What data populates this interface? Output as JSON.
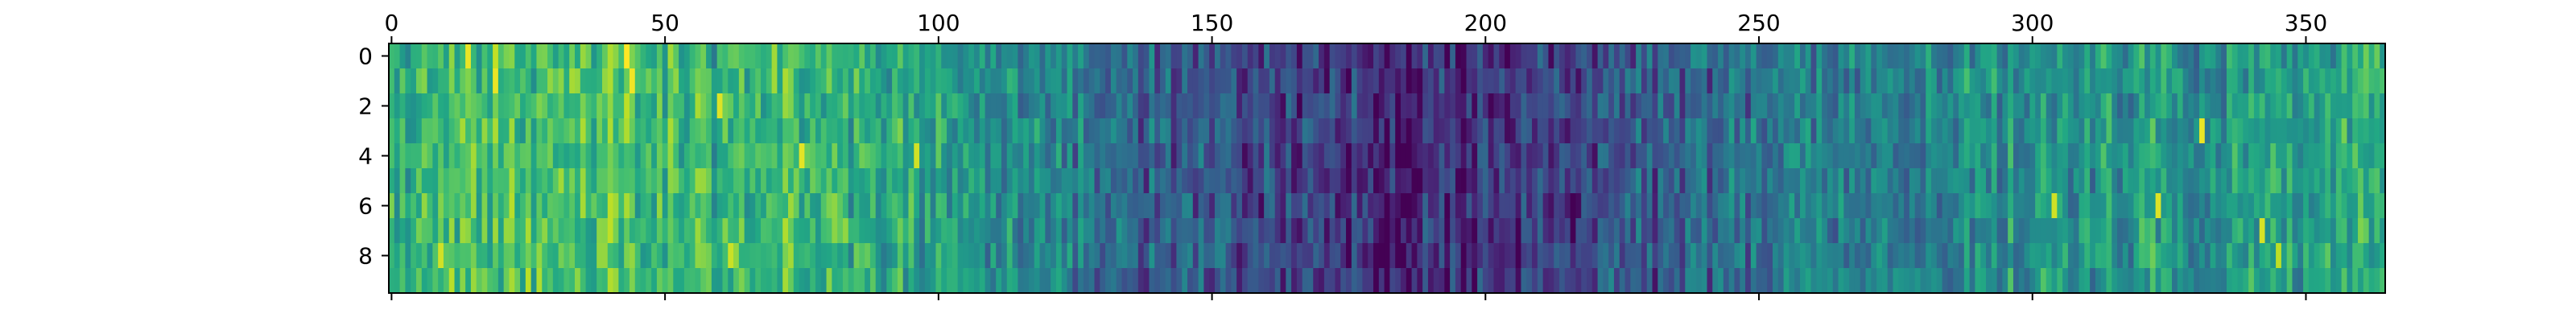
{
  "chart_data": {
    "type": "heatmap",
    "title": "",
    "xlabel": "",
    "ylabel": "",
    "colormap": "viridis",
    "rows": 10,
    "cols": 365,
    "xlim": [
      -0.5,
      364.5
    ],
    "ylim": [
      9.5,
      -0.5
    ],
    "x_axis_position": "top",
    "x_ticks": [
      0,
      50,
      100,
      150,
      200,
      250,
      300,
      350
    ],
    "x_tick_labels": [
      "0",
      "50",
      "100",
      "150",
      "200",
      "250",
      "300",
      "350"
    ],
    "y_ticks": [
      0,
      2,
      4,
      6,
      8
    ],
    "y_tick_labels": [
      "0",
      "2",
      "4",
      "6",
      "8"
    ],
    "value_range": [
      0,
      1
    ],
    "column_profile": [
      {
        "x": 0,
        "v": 0.58
      },
      {
        "x": 10,
        "v": 0.68
      },
      {
        "x": 20,
        "v": 0.72
      },
      {
        "x": 30,
        "v": 0.66
      },
      {
        "x": 40,
        "v": 0.74
      },
      {
        "x": 50,
        "v": 0.66
      },
      {
        "x": 60,
        "v": 0.62
      },
      {
        "x": 70,
        "v": 0.66
      },
      {
        "x": 80,
        "v": 0.62
      },
      {
        "x": 90,
        "v": 0.6
      },
      {
        "x": 100,
        "v": 0.56
      },
      {
        "x": 110,
        "v": 0.5
      },
      {
        "x": 120,
        "v": 0.44
      },
      {
        "x": 130,
        "v": 0.38
      },
      {
        "x": 140,
        "v": 0.3
      },
      {
        "x": 150,
        "v": 0.27
      },
      {
        "x": 160,
        "v": 0.2
      },
      {
        "x": 170,
        "v": 0.18
      },
      {
        "x": 180,
        "v": 0.17
      },
      {
        "x": 190,
        "v": 0.14
      },
      {
        "x": 200,
        "v": 0.13
      },
      {
        "x": 210,
        "v": 0.18
      },
      {
        "x": 220,
        "v": 0.24
      },
      {
        "x": 230,
        "v": 0.27
      },
      {
        "x": 240,
        "v": 0.32
      },
      {
        "x": 250,
        "v": 0.38
      },
      {
        "x": 260,
        "v": 0.42
      },
      {
        "x": 270,
        "v": 0.46
      },
      {
        "x": 280,
        "v": 0.48
      },
      {
        "x": 290,
        "v": 0.5
      },
      {
        "x": 300,
        "v": 0.52
      },
      {
        "x": 310,
        "v": 0.5
      },
      {
        "x": 320,
        "v": 0.55
      },
      {
        "x": 330,
        "v": 0.52
      },
      {
        "x": 340,
        "v": 0.54
      },
      {
        "x": 350,
        "v": 0.56
      },
      {
        "x": 364,
        "v": 0.58
      }
    ],
    "highlights": [
      {
        "col": 14,
        "row": 0,
        "v": 0.97
      },
      {
        "col": 19,
        "row": 1,
        "v": 0.97
      },
      {
        "col": 43,
        "row": 0,
        "v": 1.0
      },
      {
        "col": 44,
        "row": 1,
        "v": 0.98
      },
      {
        "col": 60,
        "row": 2,
        "v": 0.95
      },
      {
        "col": 75,
        "row": 4,
        "v": 0.96
      },
      {
        "col": 96,
        "row": 4,
        "v": 0.93
      },
      {
        "col": 9,
        "row": 8,
        "v": 0.93
      },
      {
        "col": 62,
        "row": 8,
        "v": 0.92
      },
      {
        "col": 331,
        "row": 3,
        "v": 0.97
      },
      {
        "col": 304,
        "row": 6,
        "v": 0.93
      },
      {
        "col": 323,
        "row": 6,
        "v": 0.95
      },
      {
        "col": 342,
        "row": 7,
        "v": 0.94
      },
      {
        "col": 345,
        "row": 8,
        "v": 0.9
      }
    ]
  }
}
